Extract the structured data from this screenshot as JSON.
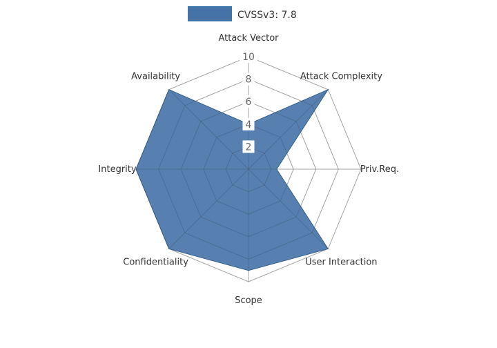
{
  "legend": {
    "label": "CVSSv3: 7.8"
  },
  "colors": {
    "series_fill": "#4572a7",
    "series_stroke": "#36618e",
    "grid_line": "#bbbbbb",
    "axis_label": "#333333",
    "tick_label": "#666666",
    "tick_bg": "#ffffff",
    "background": "#ffffff"
  },
  "chart_data": {
    "type": "radar",
    "title": "",
    "categories": [
      "Attack Vector",
      "Attack Complexity",
      "Priv.Req.",
      "User Interaction",
      "Scope",
      "Confidentiality",
      "Integrity",
      "Availability"
    ],
    "series": [
      {
        "name": "CVSSv3: 7.8",
        "values": [
          4,
          10,
          2.5,
          10,
          9,
          10,
          10,
          10
        ]
      }
    ],
    "ticks": [
      2,
      4,
      6,
      8,
      10
    ],
    "range": [
      0,
      10
    ],
    "grid": true,
    "legend_position": "top"
  }
}
